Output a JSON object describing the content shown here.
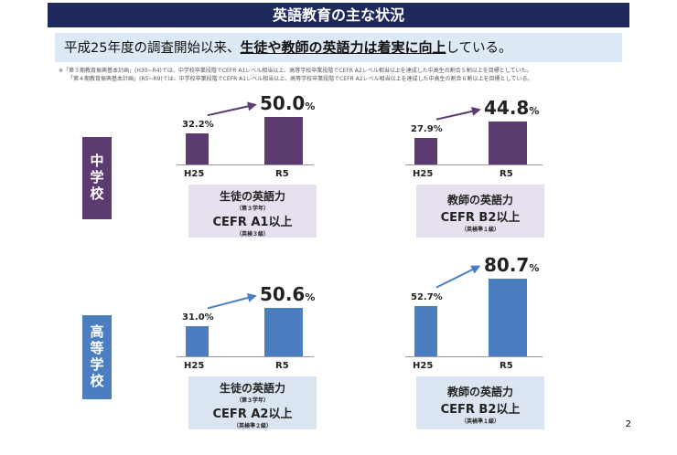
{
  "title": "英語教育の主な状況",
  "subtitle": {
    "pre": "平成25年度の調査開始以来、",
    "bold": "生徒や教師の英語力は着実に向上",
    "post": "している。"
  },
  "notes": [
    "※「第３期教育振興基本計画」(H30~R4)では、中学校卒業段階でCEFR A1レベル相当以上、高等学校卒業段階でCEFR A2レベル相当以上を達成した中高生の割合５割以上を目標としていた。",
    "「第４期教育振興基本計画」(R5~R9)では、中学校卒業段階でCEFR A1レベル相当以上、高等学校卒業段階でCEFR A2レベル相当以上を達成した中高生の割合６割以上を目標としている。"
  ],
  "colors": {
    "navy": "#1f2a5c",
    "purple": "#5b3b70",
    "purple_light": "#e7e0ef",
    "blue": "#4a7ec0",
    "blue_light": "#dbe5f1"
  },
  "sections": [
    {
      "label": "中学校",
      "charts": [
        {
          "categories": [
            "H25",
            "R5"
          ],
          "values": [
            32.2,
            50.0
          ],
          "labels": [
            "32.2%",
            "50.0"
          ],
          "unit": "%",
          "box": {
            "l1": "生徒の英語力",
            "s1": "（第３学年）",
            "l2": "CEFR A1以上",
            "s2": "（英検３級）"
          }
        },
        {
          "categories": [
            "H25",
            "R5"
          ],
          "values": [
            27.9,
            44.8
          ],
          "labels": [
            "27.9%",
            "44.8"
          ],
          "unit": "%",
          "box": {
            "l1": "教師の英語力",
            "s1": "",
            "l2": "CEFR B2以上",
            "s2": "（英検準１級）"
          }
        }
      ]
    },
    {
      "label": "高等学校",
      "charts": [
        {
          "categories": [
            "H25",
            "R5"
          ],
          "values": [
            31.0,
            50.6
          ],
          "labels": [
            "31.0%",
            "50.6"
          ],
          "unit": "%",
          "box": {
            "l1": "生徒の英語力",
            "s1": "（第３学年）",
            "l2": "CEFR A2以上",
            "s2": "（英検準２級）"
          }
        },
        {
          "categories": [
            "H25",
            "R5"
          ],
          "values": [
            52.7,
            80.7
          ],
          "labels": [
            "52.7%",
            "80.7"
          ],
          "unit": "%",
          "box": {
            "l1": "教師の英語力",
            "s1": "",
            "l2": "CEFR B2以上",
            "s2": "（英検準１級）"
          }
        }
      ]
    }
  ],
  "page_number": "2"
}
